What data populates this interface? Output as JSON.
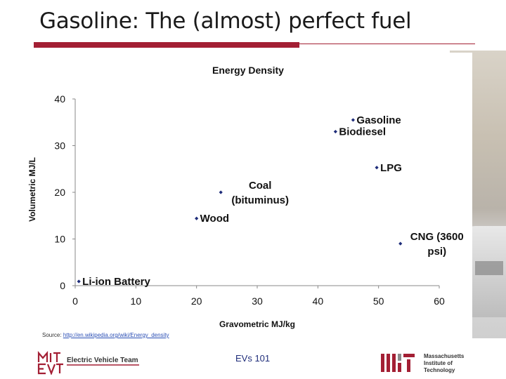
{
  "slide": {
    "title": "Gasoline: The (almost) perfect fuel",
    "footer_center": "EVs 101",
    "source_label": "Source:",
    "source_url": "http://en.wikipedia.org/wiki/Energy_density",
    "left_logo_text": "Electric Vehicle Team",
    "right_logo_lines": [
      "Massachusetts",
      "Institute of",
      "Technology"
    ],
    "accent_color": "#a31f34"
  },
  "chart_data": {
    "type": "scatter",
    "title": "Energy Density",
    "xlabel": "Gravometric MJ/kg",
    "ylabel": "Volumetric MJ/L",
    "xlim": [
      0,
      60
    ],
    "ylim": [
      0,
      40
    ],
    "xticks": [
      0,
      10,
      20,
      30,
      40,
      50,
      60
    ],
    "yticks": [
      0,
      10,
      20,
      30,
      40
    ],
    "grid": false,
    "marker_color": "#1f2d7a",
    "points": [
      {
        "name": "Gasoline",
        "x": 45.8,
        "y": 35.5,
        "label_lines": [
          "Gasoline"
        ]
      },
      {
        "name": "Biodiesel",
        "x": 42.9,
        "y": 33.0,
        "label_lines": [
          "Biodiesel"
        ]
      },
      {
        "name": "LPG",
        "x": 49.7,
        "y": 25.3,
        "label_lines": [
          "LPG"
        ]
      },
      {
        "name": "Coal (bituminus)",
        "x": 24.0,
        "y": 20.0,
        "label_lines": [
          "Coal",
          "(bituminus)"
        ]
      },
      {
        "name": "Wood",
        "x": 20.0,
        "y": 14.4,
        "label_lines": [
          "Wood"
        ]
      },
      {
        "name": "CNG (3600 psi)",
        "x": 53.6,
        "y": 9.0,
        "label_lines": [
          "CNG (3600",
          "psi)"
        ]
      },
      {
        "name": "Li-ion Battery",
        "x": 0.6,
        "y": 0.9,
        "label_lines": [
          "Li-ion Battery"
        ]
      }
    ]
  }
}
